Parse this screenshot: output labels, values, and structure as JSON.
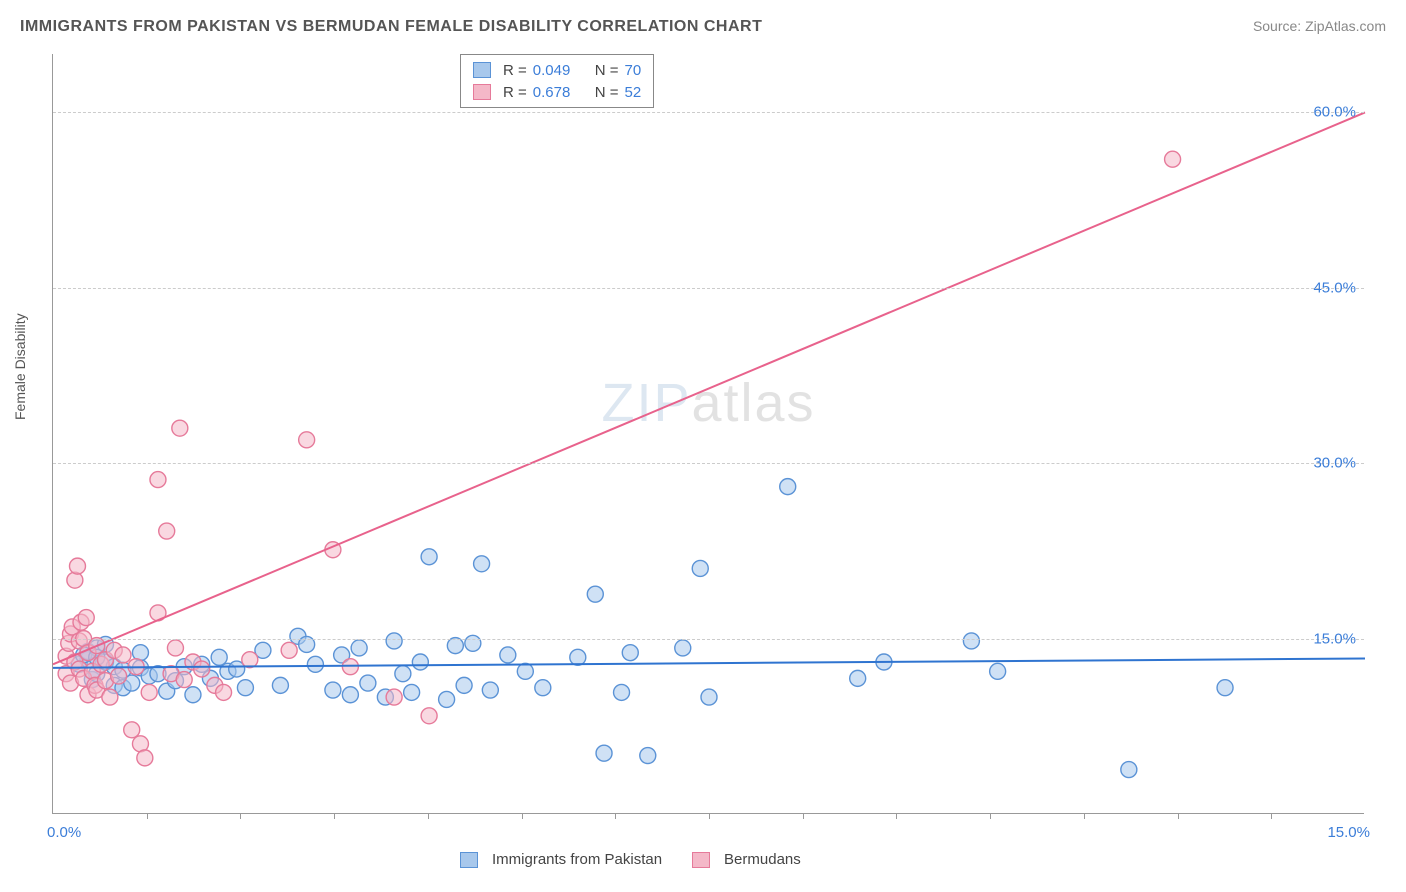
{
  "title": "IMMIGRANTS FROM PAKISTAN VS BERMUDAN FEMALE DISABILITY CORRELATION CHART",
  "source_label": "Source: ",
  "source_name": "ZipAtlas.com",
  "ylabel": "Female Disability",
  "watermark_zip": "ZIP",
  "watermark_atlas": "atlas",
  "chart": {
    "type": "scatter",
    "xlim": [
      0,
      15
    ],
    "ylim": [
      0,
      65
    ],
    "x_ticks": [
      0,
      15
    ],
    "x_tick_labels": [
      "0.0%",
      "15.0%"
    ],
    "y_ticks": [
      15,
      30,
      45,
      60
    ],
    "y_tick_labels": [
      "15.0%",
      "30.0%",
      "45.0%",
      "60.0%"
    ],
    "minor_x_ticks_count": 13,
    "grid_color": "#cccccc",
    "axis_color": "#999999",
    "background_color": "#ffffff",
    "marker_radius": 8,
    "marker_stroke_width": 1.4,
    "line_width": 2,
    "series": [
      {
        "id": "pakistan",
        "label": "Immigrants from Pakistan",
        "fill_color": "#a8c8ec",
        "stroke_color": "#5b93d6",
        "fill_opacity": 0.55,
        "r": 0.049,
        "n": 70,
        "trend": {
          "x1": 0,
          "y1": 12.5,
          "x2": 15,
          "y2": 13.3,
          "color": "#2f74d0"
        },
        "points": [
          [
            0.3,
            12.8
          ],
          [
            0.4,
            13.2
          ],
          [
            0.4,
            13.9
          ],
          [
            0.45,
            11.5
          ],
          [
            0.5,
            14.2
          ],
          [
            0.5,
            12.0
          ],
          [
            0.6,
            13.0
          ],
          [
            0.6,
            14.5
          ],
          [
            0.7,
            11.0
          ],
          [
            0.7,
            12.6
          ],
          [
            0.8,
            12.3
          ],
          [
            0.8,
            10.8
          ],
          [
            0.9,
            11.2
          ],
          [
            1.0,
            12.5
          ],
          [
            1.0,
            13.8
          ],
          [
            1.1,
            11.8
          ],
          [
            1.2,
            12.0
          ],
          [
            1.3,
            10.5
          ],
          [
            1.4,
            11.4
          ],
          [
            1.5,
            12.6
          ],
          [
            1.6,
            10.2
          ],
          [
            1.8,
            11.6
          ],
          [
            1.9,
            13.4
          ],
          [
            2.0,
            12.2
          ],
          [
            2.2,
            10.8
          ],
          [
            2.4,
            14.0
          ],
          [
            2.6,
            11.0
          ],
          [
            2.8,
            15.2
          ],
          [
            2.9,
            14.5
          ],
          [
            3.0,
            12.8
          ],
          [
            3.2,
            10.6
          ],
          [
            3.3,
            13.6
          ],
          [
            3.4,
            10.2
          ],
          [
            3.5,
            14.2
          ],
          [
            3.6,
            11.2
          ],
          [
            3.8,
            10.0
          ],
          [
            3.9,
            14.8
          ],
          [
            4.0,
            12.0
          ],
          [
            4.1,
            10.4
          ],
          [
            4.2,
            13.0
          ],
          [
            4.3,
            22.0
          ],
          [
            4.5,
            9.8
          ],
          [
            4.6,
            14.4
          ],
          [
            4.7,
            11.0
          ],
          [
            4.8,
            14.6
          ],
          [
            4.9,
            21.4
          ],
          [
            5.0,
            10.6
          ],
          [
            5.2,
            13.6
          ],
          [
            5.4,
            12.2
          ],
          [
            5.6,
            10.8
          ],
          [
            6.0,
            13.4
          ],
          [
            6.2,
            18.8
          ],
          [
            6.3,
            5.2
          ],
          [
            6.5,
            10.4
          ],
          [
            6.6,
            13.8
          ],
          [
            6.8,
            5.0
          ],
          [
            7.2,
            14.2
          ],
          [
            7.4,
            21.0
          ],
          [
            7.5,
            10.0
          ],
          [
            8.4,
            28.0
          ],
          [
            9.2,
            11.6
          ],
          [
            9.5,
            13.0
          ],
          [
            10.5,
            14.8
          ],
          [
            10.8,
            12.2
          ],
          [
            12.3,
            3.8
          ],
          [
            13.4,
            10.8
          ],
          [
            0.35,
            13.6
          ],
          [
            0.5,
            13.4
          ],
          [
            1.7,
            12.8
          ],
          [
            2.1,
            12.4
          ]
        ]
      },
      {
        "id": "bermudans",
        "label": "Bermudans",
        "fill_color": "#f4b8c8",
        "stroke_color": "#e67a9a",
        "fill_opacity": 0.55,
        "r": 0.678,
        "n": 52,
        "trend": {
          "x1": 0,
          "y1": 12.8,
          "x2": 15,
          "y2": 60.0,
          "color": "#e8628c"
        },
        "points": [
          [
            0.15,
            12.0
          ],
          [
            0.15,
            13.5
          ],
          [
            0.18,
            14.6
          ],
          [
            0.2,
            15.4
          ],
          [
            0.2,
            11.2
          ],
          [
            0.22,
            16.0
          ],
          [
            0.25,
            20.0
          ],
          [
            0.25,
            13.0
          ],
          [
            0.28,
            21.2
          ],
          [
            0.3,
            12.4
          ],
          [
            0.3,
            14.8
          ],
          [
            0.32,
            16.4
          ],
          [
            0.35,
            11.6
          ],
          [
            0.35,
            15.0
          ],
          [
            0.38,
            16.8
          ],
          [
            0.4,
            10.2
          ],
          [
            0.4,
            13.8
          ],
          [
            0.45,
            12.2
          ],
          [
            0.48,
            11.0
          ],
          [
            0.5,
            14.4
          ],
          [
            0.5,
            10.6
          ],
          [
            0.55,
            12.8
          ],
          [
            0.6,
            11.4
          ],
          [
            0.6,
            13.2
          ],
          [
            0.65,
            10.0
          ],
          [
            0.7,
            14.0
          ],
          [
            0.75,
            11.8
          ],
          [
            0.8,
            13.6
          ],
          [
            0.9,
            7.2
          ],
          [
            0.95,
            12.6
          ],
          [
            1.0,
            6.0
          ],
          [
            1.05,
            4.8
          ],
          [
            1.1,
            10.4
          ],
          [
            1.2,
            28.6
          ],
          [
            1.2,
            17.2
          ],
          [
            1.3,
            24.2
          ],
          [
            1.35,
            12.0
          ],
          [
            1.4,
            14.2
          ],
          [
            1.45,
            33.0
          ],
          [
            1.5,
            11.5
          ],
          [
            1.6,
            13.0
          ],
          [
            1.7,
            12.4
          ],
          [
            1.85,
            11.0
          ],
          [
            1.95,
            10.4
          ],
          [
            2.25,
            13.2
          ],
          [
            2.7,
            14.0
          ],
          [
            2.9,
            32.0
          ],
          [
            3.2,
            22.6
          ],
          [
            3.4,
            12.6
          ],
          [
            3.9,
            10.0
          ],
          [
            4.3,
            8.4
          ],
          [
            12.8,
            56.0
          ]
        ]
      }
    ]
  },
  "legend_top": {
    "r_label": "R =",
    "n_label": "N ="
  }
}
